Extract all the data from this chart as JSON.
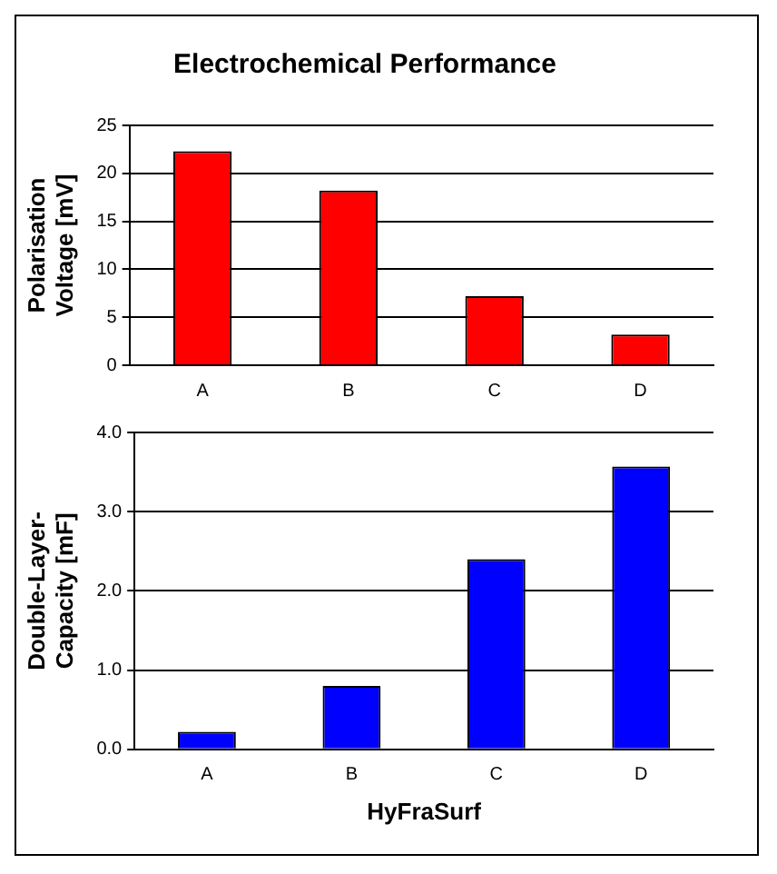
{
  "chart_data": [
    {
      "type": "bar",
      "title": "Electrochemical Performance",
      "ylabel": "Polarisation Voltage [mV]",
      "categories": [
        "A",
        "B",
        "C",
        "D"
      ],
      "values": [
        22.3,
        18.2,
        7.2,
        3.2
      ],
      "color": "#ff0000",
      "ylim": [
        0,
        25
      ],
      "yticks": [
        0,
        5,
        10,
        15,
        20,
        25
      ],
      "grid": "y"
    },
    {
      "type": "bar",
      "ylabel": "Double-Layer-Capacity [mF]",
      "xlabel": "HyFraSurf",
      "categories": [
        "A",
        "B",
        "C",
        "D"
      ],
      "values": [
        0.22,
        0.8,
        2.4,
        3.57
      ],
      "color": "#0000ff",
      "ylim": [
        0,
        4
      ],
      "yticks": [
        {
          "value": 0,
          "label": "0.0"
        },
        {
          "value": 1,
          "label": "1.0"
        },
        {
          "value": 2,
          "label": "2.0"
        },
        {
          "value": 3,
          "label": "3.0"
        },
        {
          "value": 4,
          "label": "4.0"
        }
      ],
      "grid": "y"
    }
  ]
}
